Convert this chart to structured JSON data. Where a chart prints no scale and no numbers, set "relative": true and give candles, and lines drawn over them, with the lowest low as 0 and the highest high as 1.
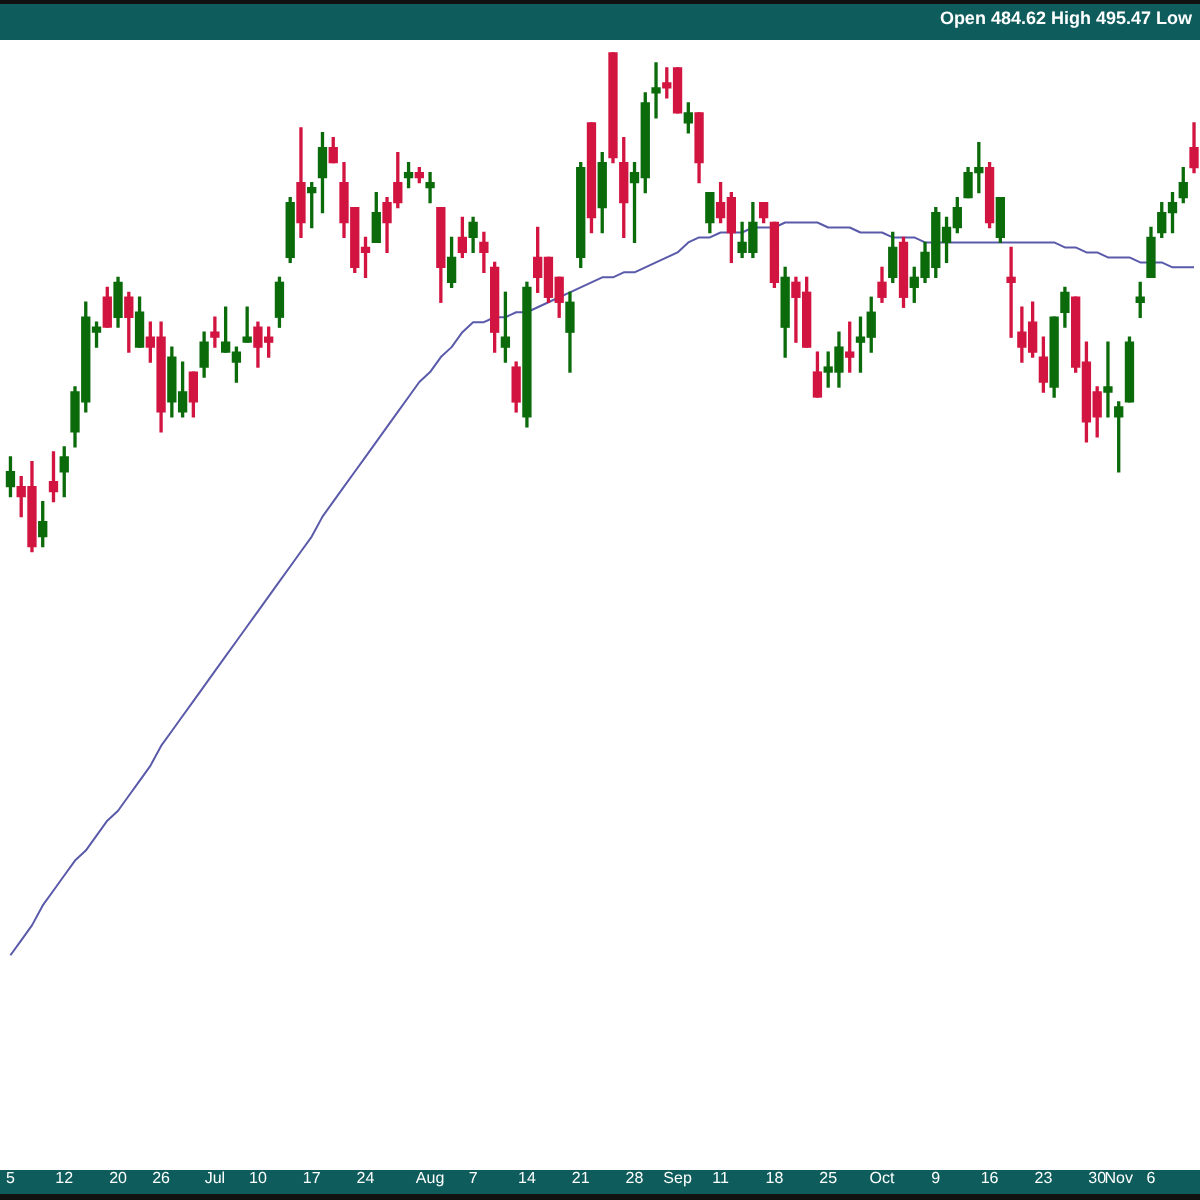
{
  "chart_data": {
    "type": "candlestick",
    "relative": true,
    "legend": false,
    "grid": false,
    "marker": "none",
    "annotations": [
      "Open 484.62 High 495.47 Low"
    ],
    "categories": [
      "5",
      null,
      null,
      null,
      null,
      "12",
      null,
      null,
      null,
      null,
      "20",
      null,
      null,
      null,
      "26",
      null,
      null,
      null,
      null,
      "Jul",
      null,
      null,
      null,
      "10",
      null,
      null,
      null,
      null,
      "17",
      null,
      null,
      null,
      null,
      "24",
      null,
      null,
      null,
      null,
      null,
      "Aug",
      null,
      null,
      null,
      "7",
      null,
      null,
      null,
      null,
      "14",
      null,
      null,
      null,
      null,
      "21",
      null,
      null,
      null,
      null,
      "28",
      null,
      null,
      null,
      "Sep",
      null,
      null,
      null,
      "11",
      null,
      null,
      null,
      null,
      "18",
      null,
      null,
      null,
      null,
      "25",
      null,
      null,
      null,
      null,
      "Oct",
      null,
      null,
      null,
      null,
      "9",
      null,
      null,
      null,
      null,
      "16",
      null,
      null,
      null,
      null,
      "23",
      null,
      null,
      null,
      null,
      "30",
      null,
      "Nov",
      null,
      null,
      "6",
      null,
      null,
      null,
      null
    ],
    "ohlc": [
      [
        0.13,
        0.19,
        0.11,
        0.16
      ],
      [
        0.13,
        0.15,
        0.07,
        0.11
      ],
      [
        0.13,
        0.18,
        0,
        0.01
      ],
      [
        0.03,
        0.1,
        0.01,
        0.06
      ],
      [
        0.14,
        0.2,
        0.1,
        0.12
      ],
      [
        0.16,
        0.21,
        0.11,
        0.19
      ],
      [
        0.24,
        0.33,
        0.21,
        0.32
      ],
      [
        0.3,
        0.5,
        0.28,
        0.47
      ],
      [
        0.44,
        0.46,
        0.41,
        0.45
      ],
      [
        0.51,
        0.53,
        0.45,
        0.45
      ],
      [
        0.47,
        0.55,
        0.45,
        0.54
      ],
      [
        0.51,
        0.52,
        0.4,
        0.47
      ],
      [
        0.41,
        0.51,
        0.41,
        0.48
      ],
      [
        0.43,
        0.46,
        0.38,
        0.41
      ],
      [
        0.43,
        0.46,
        0.24,
        0.28
      ],
      [
        0.3,
        0.41,
        0.27,
        0.39
      ],
      [
        0.28,
        0.38,
        0.27,
        0.32
      ],
      [
        0.36,
        0.36,
        0.27,
        0.3
      ],
      [
        0.37,
        0.44,
        0.35,
        0.42
      ],
      [
        0.44,
        0.47,
        0.41,
        0.43
      ],
      [
        0.4,
        0.49,
        0.4,
        0.42
      ],
      [
        0.38,
        0.41,
        0.34,
        0.4
      ],
      [
        0.42,
        0.49,
        0.42,
        0.43
      ],
      [
        0.45,
        0.46,
        0.37,
        0.41
      ],
      [
        0.43,
        0.45,
        0.39,
        0.42
      ],
      [
        0.47,
        0.55,
        0.45,
        0.54
      ],
      [
        0.59,
        0.71,
        0.58,
        0.7
      ],
      [
        0.74,
        0.85,
        0.63,
        0.66
      ],
      [
        0.72,
        0.74,
        0.65,
        0.73
      ],
      [
        0.75,
        0.84,
        0.68,
        0.81
      ],
      [
        0.81,
        0.83,
        0.78,
        0.78
      ],
      [
        0.74,
        0.78,
        0.63,
        0.66
      ],
      [
        0.69,
        0.69,
        0.56,
        0.57
      ],
      [
        0.61,
        0.63,
        0.55,
        0.6
      ],
      [
        0.62,
        0.72,
        0.62,
        0.68
      ],
      [
        0.7,
        0.71,
        0.6,
        0.66
      ],
      [
        0.74,
        0.8,
        0.69,
        0.7
      ],
      [
        0.75,
        0.78,
        0.73,
        0.76
      ],
      [
        0.76,
        0.77,
        0.74,
        0.75
      ],
      [
        0.73,
        0.76,
        0.7,
        0.74
      ],
      [
        0.69,
        0.69,
        0.5,
        0.57
      ],
      [
        0.54,
        0.63,
        0.53,
        0.59
      ],
      [
        0.63,
        0.67,
        0.59,
        0.6
      ],
      [
        0.63,
        0.67,
        0.6,
        0.66
      ],
      [
        0.62,
        0.64,
        0.56,
        0.6
      ],
      [
        0.57,
        0.58,
        0.4,
        0.44
      ],
      [
        0.41,
        0.52,
        0.38,
        0.43
      ],
      [
        0.37,
        0.38,
        0.28,
        0.3
      ],
      [
        0.27,
        0.54,
        0.25,
        0.53
      ],
      [
        0.59,
        0.65,
        0.52,
        0.55
      ],
      [
        0.59,
        0.59,
        0.5,
        0.51
      ],
      [
        0.55,
        0.55,
        0.47,
        0.5
      ],
      [
        0.44,
        0.52,
        0.36,
        0.5
      ],
      [
        0.59,
        0.78,
        0.57,
        0.77
      ],
      [
        0.86,
        0.86,
        0.64,
        0.67
      ],
      [
        0.69,
        0.8,
        0.64,
        0.78
      ],
      [
        1,
        1,
        0.78,
        0.79
      ],
      [
        0.78,
        0.83,
        0.63,
        0.7
      ],
      [
        0.74,
        0.78,
        0.62,
        0.76
      ],
      [
        0.75,
        0.92,
        0.72,
        0.9
      ],
      [
        0.92,
        0.98,
        0.87,
        0.93
      ],
      [
        0.94,
        0.97,
        0.91,
        0.93
      ],
      [
        0.97,
        0.97,
        0.88,
        0.88
      ],
      [
        0.86,
        0.9,
        0.84,
        0.88
      ],
      [
        0.88,
        0.88,
        0.74,
        0.78
      ],
      [
        0.66,
        0.72,
        0.64,
        0.72
      ],
      [
        0.7,
        0.74,
        0.66,
        0.67
      ],
      [
        0.71,
        0.72,
        0.58,
        0.64
      ],
      [
        0.6,
        0.66,
        0.59,
        0.62
      ],
      [
        0.6,
        0.7,
        0.59,
        0.66
      ],
      [
        0.7,
        0.7,
        0.66,
        0.67
      ],
      [
        0.66,
        0.66,
        0.53,
        0.54
      ],
      [
        0.45,
        0.57,
        0.39,
        0.55
      ],
      [
        0.54,
        0.55,
        0.42,
        0.51
      ],
      [
        0.52,
        0.55,
        0.41,
        0.41
      ],
      [
        0.36,
        0.4,
        0.31,
        0.31
      ],
      [
        0.36,
        0.4,
        0.33,
        0.37
      ],
      [
        0.36,
        0.44,
        0.33,
        0.41
      ],
      [
        0.4,
        0.46,
        0.36,
        0.39
      ],
      [
        0.42,
        0.47,
        0.36,
        0.43
      ],
      [
        0.43,
        0.51,
        0.4,
        0.48
      ],
      [
        0.54,
        0.57,
        0.5,
        0.51
      ],
      [
        0.55,
        0.64,
        0.54,
        0.61
      ],
      [
        0.62,
        0.63,
        0.49,
        0.51
      ],
      [
        0.53,
        0.57,
        0.5,
        0.55
      ],
      [
        0.55,
        0.62,
        0.54,
        0.6
      ],
      [
        0.57,
        0.69,
        0.55,
        0.68
      ],
      [
        0.62,
        0.67,
        0.58,
        0.65
      ],
      [
        0.65,
        0.71,
        0.64,
        0.69
      ],
      [
        0.71,
        0.77,
        0.71,
        0.76
      ],
      [
        0.76,
        0.82,
        0.72,
        0.77
      ],
      [
        0.77,
        0.78,
        0.65,
        0.66
      ],
      [
        0.63,
        0.71,
        0.62,
        0.71
      ],
      [
        0.55,
        0.61,
        0.43,
        0.54
      ],
      [
        0.44,
        0.49,
        0.38,
        0.41
      ],
      [
        0.46,
        0.5,
        0.39,
        0.4
      ],
      [
        0.39,
        0.43,
        0.32,
        0.34
      ],
      [
        0.33,
        0.47,
        0.31,
        0.47
      ],
      [
        0.48,
        0.53,
        0.45,
        0.52
      ],
      [
        0.51,
        0.51,
        0.36,
        0.37
      ],
      [
        0.38,
        0.42,
        0.22,
        0.26
      ],
      [
        0.32,
        0.33,
        0.23,
        0.27
      ],
      [
        0.32,
        0.42,
        0.27,
        0.33
      ],
      [
        0.27,
        0.3,
        0.16,
        0.29
      ],
      [
        0.3,
        0.43,
        0.3,
        0.42
      ],
      [
        0.5,
        0.54,
        0.47,
        0.51
      ],
      [
        0.55,
        0.65,
        0.55,
        0.63
      ],
      [
        0.64,
        0.7,
        0.63,
        0.68
      ],
      [
        0.68,
        0.72,
        0.64,
        0.7
      ],
      [
        0.71,
        0.77,
        0.7,
        0.74
      ],
      [
        0.81,
        0.86,
        0.76,
        0.77
      ]
    ],
    "colors": [
      "#0b6b0b",
      "#d21440",
      "#d21440",
      "#0b6b0b",
      "#d21440",
      "#0b6b0b",
      "#0b6b0b",
      "#0b6b0b",
      "#0b6b0b",
      "#d21440",
      "#0b6b0b",
      "#d21440",
      "#0b6b0b",
      "#d21440",
      "#d21440",
      "#0b6b0b",
      "#0b6b0b",
      "#d21440",
      "#0b6b0b",
      "#d21440",
      "#0b6b0b",
      "#0b6b0b",
      "#0b6b0b",
      "#d21440",
      "#d21440",
      "#0b6b0b",
      "#0b6b0b",
      "#d21440",
      "#0b6b0b",
      "#0b6b0b",
      "#d21440",
      "#d21440",
      "#d21440",
      "#d21440",
      "#0b6b0b",
      "#d21440",
      "#d21440",
      "#0b6b0b",
      "#d21440",
      "#0b6b0b",
      "#d21440",
      "#0b6b0b",
      "#d21440",
      "#0b6b0b",
      "#d21440",
      "#d21440",
      "#0b6b0b",
      "#d21440",
      "#0b6b0b",
      "#d21440",
      "#d21440",
      "#d21440",
      "#0b6b0b",
      "#0b6b0b",
      "#d21440",
      "#0b6b0b",
      "#d21440",
      "#d21440",
      "#0b6b0b",
      "#0b6b0b",
      "#0b6b0b",
      "#d21440",
      "#d21440",
      "#0b6b0b",
      "#d21440",
      "#0b6b0b",
      "#d21440",
      "#d21440",
      "#0b6b0b",
      "#0b6b0b",
      "#d21440",
      "#d21440",
      "#0b6b0b",
      "#d21440",
      "#d21440",
      "#d21440",
      "#0b6b0b",
      "#0b6b0b",
      "#d21440",
      "#0b6b0b",
      "#0b6b0b",
      "#d21440",
      "#0b6b0b",
      "#d21440",
      "#0b6b0b",
      "#0b6b0b",
      "#0b6b0b",
      "#0b6b0b",
      "#0b6b0b",
      "#0b6b0b",
      "#0b6b0b",
      "#d21440",
      "#0b6b0b",
      "#d21440",
      "#d21440",
      "#d21440",
      "#d21440",
      "#0b6b0b",
      "#0b6b0b",
      "#d21440",
      "#d21440",
      "#d21440",
      "#0b6b0b",
      "#0b6b0b",
      "#0b6b0b",
      "#0b6b0b",
      "#0b6b0b",
      "#0b6b0b",
      "#0b6b0b",
      "#0b6b0b",
      "#d21440"
    ],
    "series": [
      {
        "type": "line",
        "color": "#5a5aaa",
        "values": [
          -0.81,
          -0.78,
          -0.75,
          -0.71,
          -0.68,
          -0.65,
          -0.62,
          -0.6,
          -0.57,
          -0.54,
          -0.52,
          -0.49,
          -0.46,
          -0.43,
          -0.39,
          -0.36,
          -0.33,
          -0.3,
          -0.27,
          -0.24,
          -0.21,
          -0.18,
          -0.15,
          -0.12,
          -0.09,
          -0.06,
          -0.03,
          0,
          0.03,
          0.07,
          0.1,
          0.13,
          0.16,
          0.19,
          0.22,
          0.25,
          0.28,
          0.31,
          0.34,
          0.36,
          0.39,
          0.41,
          0.44,
          0.46,
          0.46,
          0.47,
          0.47,
          0.48,
          0.48,
          0.49,
          0.5,
          0.51,
          0.52,
          0.53,
          0.54,
          0.55,
          0.55,
          0.56,
          0.56,
          0.57,
          0.58,
          0.59,
          0.6,
          0.62,
          0.63,
          0.63,
          0.64,
          0.64,
          0.64,
          0.65,
          0.65,
          0.65,
          0.66,
          0.66,
          0.66,
          0.66,
          0.65,
          0.65,
          0.65,
          0.64,
          0.64,
          0.64,
          0.63,
          0.63,
          0.63,
          0.62,
          0.62,
          0.62,
          0.62,
          0.62,
          0.62,
          0.62,
          0.62,
          0.62,
          0.62,
          0.62,
          0.62,
          0.62,
          0.61,
          0.61,
          0.6,
          0.6,
          0.59,
          0.59,
          0.59,
          0.58,
          0.58,
          0.58,
          0.57,
          0.57,
          0.57
        ]
      }
    ]
  }
}
